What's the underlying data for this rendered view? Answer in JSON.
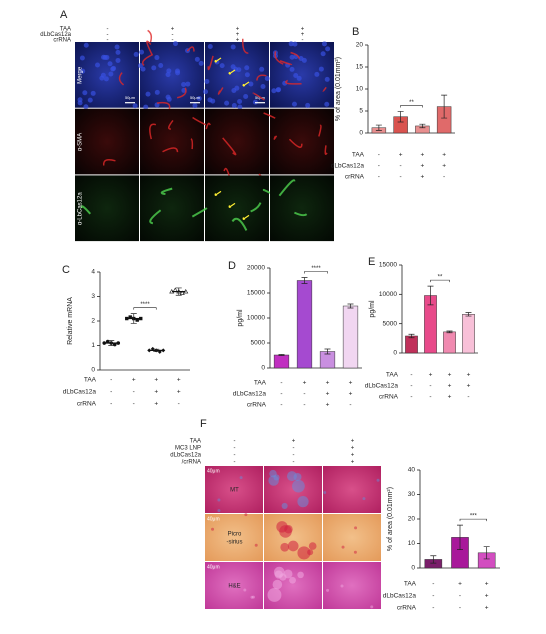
{
  "panel_a": {
    "letter": "A",
    "conditions": [
      {
        "name": "TAA",
        "marks": [
          "-",
          "+",
          "+",
          "+"
        ]
      },
      {
        "name": "dLbCas12a",
        "marks": [
          "-",
          "-",
          "+",
          "+"
        ]
      },
      {
        "name": "crRNA",
        "marks": [
          "-",
          "-",
          "+",
          "-"
        ]
      }
    ],
    "rows": [
      "Merge",
      "α-SMA",
      "α-LbCas12a"
    ],
    "scale_bar": "50μm"
  },
  "panel_f": {
    "letter": "F",
    "conditions": [
      {
        "name": "TAA",
        "marks": [
          "-",
          "+",
          "+"
        ]
      },
      {
        "name": "MC3 LNP",
        "marks": [
          "-",
          "-",
          "+"
        ]
      },
      {
        "name": "dLbCas12a",
        "marks": [
          "-",
          "-",
          "+"
        ]
      },
      {
        "name": "/crRNA",
        "marks": [
          "-",
          "-",
          "+"
        ]
      }
    ],
    "rows": [
      [
        "MT"
      ],
      [
        "Picro",
        "-sirius"
      ],
      [
        "H&E"
      ]
    ],
    "scale_bar": "40μm"
  },
  "chart_data": [
    {
      "type": "bar",
      "panel": "B",
      "ylabel": "% of area (0.01mm²)",
      "values": [
        1.2,
        3.7,
        1.6,
        6.0
      ],
      "errors": [
        0.6,
        1.2,
        0.4,
        2.6
      ],
      "colors": [
        "#e88f8f",
        "#d9534f",
        "#e88f8f",
        "#e06a6a"
      ],
      "ylim": [
        0,
        20
      ],
      "yticks": [
        0,
        5,
        10,
        15,
        20
      ],
      "significance": "**",
      "conditions": [
        {
          "name": "TAA",
          "marks": [
            "-",
            "+",
            "+",
            "+"
          ]
        },
        {
          "name": "dLbCas12a",
          "marks": [
            "-",
            "-",
            "+",
            "+"
          ]
        },
        {
          "name": "crRNA",
          "marks": [
            "-",
            "-",
            "+",
            "-"
          ]
        }
      ]
    },
    {
      "type": "dot",
      "panel": "C",
      "ylabel": "Relative mRNA",
      "values": [
        1.1,
        2.1,
        0.8,
        3.2
      ],
      "errors": [
        0.1,
        0.2,
        0.05,
        0.15
      ],
      "colors": [
        "#111111",
        "#111111",
        "#111111",
        "#111111"
      ],
      "ylim": [
        0,
        4
      ],
      "yticks": [
        0,
        1,
        2,
        3,
        4
      ],
      "significance": "****",
      "conditions": [
        {
          "name": "TAA",
          "marks": [
            "-",
            "+",
            "+",
            "+"
          ]
        },
        {
          "name": "dLbCas12a",
          "marks": [
            "-",
            "-",
            "+",
            "+"
          ]
        },
        {
          "name": "crRNA",
          "marks": [
            "-",
            "-",
            "+",
            "-"
          ]
        }
      ]
    },
    {
      "type": "bar",
      "panel": "D",
      "ylabel": "pg/ml",
      "values": [
        2600,
        17500,
        3300,
        12400
      ],
      "errors": [
        100,
        600,
        500,
        400
      ],
      "colors": [
        "#c02fc0",
        "#a54ad0",
        "#c98fe0",
        "#f1d6f1"
      ],
      "ylim": [
        0,
        20000
      ],
      "yticks": [
        0,
        5000,
        10000,
        15000,
        20000
      ],
      "significance": "****",
      "conditions": [
        {
          "name": "TAA",
          "marks": [
            "-",
            "+",
            "+",
            "+"
          ]
        },
        {
          "name": "dLbCas12a",
          "marks": [
            "-",
            "-",
            "+",
            "+"
          ]
        },
        {
          "name": "crRNA",
          "marks": [
            "-",
            "-",
            "+",
            "-"
          ]
        }
      ]
    },
    {
      "type": "bar",
      "panel": "E",
      "ylabel": "pg/ml",
      "values": [
        2900,
        9800,
        3600,
        6600
      ],
      "errors": [
        300,
        1600,
        150,
        300
      ],
      "colors": [
        "#c0305a",
        "#e84a8a",
        "#f08ab0",
        "#f8c0d8"
      ],
      "ylim": [
        0,
        15000
      ],
      "yticks": [
        0,
        5000,
        10000,
        15000
      ],
      "significance": "**",
      "conditions": [
        {
          "name": "TAA",
          "marks": [
            "-",
            "+",
            "+",
            "+"
          ]
        },
        {
          "name": "dLbCas12a",
          "marks": [
            "-",
            "-",
            "+",
            "+"
          ]
        },
        {
          "name": "crRNA",
          "marks": [
            "-",
            "-",
            "+",
            "-"
          ]
        }
      ]
    },
    {
      "type": "bar",
      "ylabel": "% of area (0.01mm²)",
      "values": [
        3.5,
        12.5,
        6.2
      ],
      "errors": [
        1.5,
        5,
        2.5
      ],
      "colors": [
        "#7a1e6a",
        "#a8189a",
        "#d24ec0"
      ],
      "ylim": [
        0,
        40
      ],
      "yticks": [
        0,
        10,
        20,
        30,
        40
      ],
      "significance": "***",
      "conditions": [
        {
          "name": "TAA",
          "marks": [
            "-",
            "+",
            "+"
          ]
        },
        {
          "name": "dLbCas12a",
          "marks": [
            "-",
            "-",
            "+"
          ]
        },
        {
          "name": "crRNA",
          "marks": [
            "-",
            "-",
            "+"
          ]
        }
      ]
    }
  ]
}
